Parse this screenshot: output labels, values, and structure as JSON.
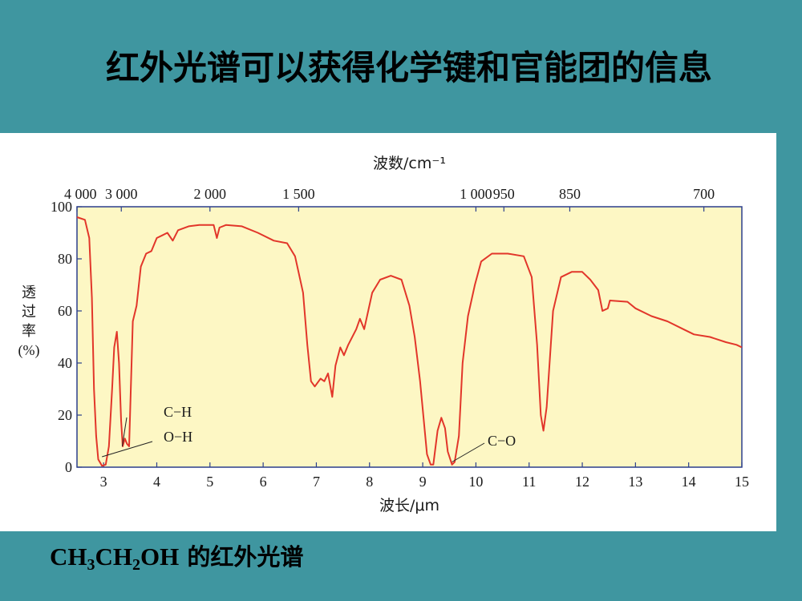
{
  "slide": {
    "title": "红外光谱可以获得化学键和官能团的信息",
    "caption": {
      "formula_parts": [
        "CH",
        "3",
        "CH",
        "2",
        "OH"
      ],
      "text": " 的红外光谱"
    }
  },
  "colors": {
    "background": "#3f96a0",
    "plot_fill": "#fdf7c4",
    "curve": "#e2362a",
    "axis": "#2b3f8c"
  },
  "chart_data": {
    "type": "line",
    "top_axis_label": "波数/cm⁻¹",
    "top_ticks": [
      "4 000",
      "3 000",
      "2 000",
      "1 500",
      "1 000",
      "950",
      "850",
      "700"
    ],
    "top_tick_values_um": [
      2.5,
      3.333,
      5.0,
      6.667,
      10.0,
      10.526,
      11.765,
      14.286
    ],
    "xlabel": "波长/μm",
    "ylabel": "透\n过\n率\n(%)",
    "ylabel_lines": [
      "透",
      "过",
      "率",
      "(%)"
    ],
    "xlim": [
      2.5,
      15
    ],
    "ylim": [
      0,
      100
    ],
    "x_ticks": [
      3,
      4,
      5,
      6,
      7,
      8,
      9,
      10,
      11,
      12,
      13,
      14,
      15
    ],
    "y_ticks": [
      0,
      20,
      40,
      60,
      80,
      100
    ],
    "series": [
      {
        "points": [
          [
            2.5,
            96
          ],
          [
            2.65,
            95
          ],
          [
            2.73,
            88
          ],
          [
            2.78,
            65
          ],
          [
            2.82,
            30
          ],
          [
            2.86,
            12
          ],
          [
            2.9,
            3
          ],
          [
            2.97,
            0.5
          ],
          [
            3.04,
            1
          ],
          [
            3.1,
            8
          ],
          [
            3.16,
            30
          ],
          [
            3.2,
            46
          ],
          [
            3.25,
            52
          ],
          [
            3.29,
            40
          ],
          [
            3.33,
            18
          ],
          [
            3.36,
            8
          ],
          [
            3.4,
            11
          ],
          [
            3.44,
            9
          ],
          [
            3.48,
            8
          ],
          [
            3.55,
            56
          ],
          [
            3.62,
            62
          ],
          [
            3.7,
            77
          ],
          [
            3.8,
            82
          ],
          [
            3.9,
            83
          ],
          [
            4.0,
            88
          ],
          [
            4.1,
            89
          ],
          [
            4.2,
            90
          ],
          [
            4.3,
            87
          ],
          [
            4.4,
            91
          ],
          [
            4.6,
            92.5
          ],
          [
            4.8,
            93
          ],
          [
            5.0,
            93
          ],
          [
            5.07,
            93
          ],
          [
            5.13,
            88
          ],
          [
            5.18,
            92
          ],
          [
            5.3,
            93
          ],
          [
            5.6,
            92.5
          ],
          [
            5.9,
            90
          ],
          [
            6.2,
            87
          ],
          [
            6.45,
            86
          ],
          [
            6.6,
            81
          ],
          [
            6.75,
            67
          ],
          [
            6.83,
            47
          ],
          [
            6.9,
            33
          ],
          [
            6.97,
            31
          ],
          [
            7.08,
            34
          ],
          [
            7.15,
            33
          ],
          [
            7.22,
            36
          ],
          [
            7.3,
            27
          ],
          [
            7.36,
            39
          ],
          [
            7.45,
            46
          ],
          [
            7.52,
            43
          ],
          [
            7.6,
            47
          ],
          [
            7.75,
            53
          ],
          [
            7.82,
            57
          ],
          [
            7.9,
            53
          ],
          [
            8.05,
            67
          ],
          [
            8.2,
            72
          ],
          [
            8.4,
            73.5
          ],
          [
            8.6,
            72
          ],
          [
            8.75,
            62
          ],
          [
            8.85,
            50
          ],
          [
            8.95,
            33
          ],
          [
            9.08,
            5
          ],
          [
            9.15,
            1
          ],
          [
            9.2,
            1
          ],
          [
            9.28,
            14
          ],
          [
            9.35,
            19
          ],
          [
            9.42,
            15
          ],
          [
            9.47,
            6
          ],
          [
            9.55,
            1
          ],
          [
            9.6,
            2
          ],
          [
            9.68,
            12
          ],
          [
            9.75,
            40
          ],
          [
            9.85,
            58
          ],
          [
            9.98,
            70
          ],
          [
            10.1,
            79
          ],
          [
            10.3,
            82
          ],
          [
            10.6,
            82
          ],
          [
            10.9,
            81
          ],
          [
            11.05,
            73
          ],
          [
            11.15,
            47
          ],
          [
            11.22,
            20
          ],
          [
            11.27,
            14
          ],
          [
            11.33,
            23
          ],
          [
            11.45,
            60
          ],
          [
            11.6,
            73
          ],
          [
            11.8,
            75
          ],
          [
            12.0,
            75
          ],
          [
            12.15,
            72
          ],
          [
            12.3,
            68
          ],
          [
            12.38,
            60
          ],
          [
            12.48,
            61
          ],
          [
            12.52,
            64
          ],
          [
            12.85,
            63.5
          ],
          [
            13.0,
            61
          ],
          [
            13.3,
            58
          ],
          [
            13.6,
            56
          ],
          [
            13.9,
            53
          ],
          [
            14.1,
            51
          ],
          [
            14.4,
            50
          ],
          [
            14.7,
            48
          ],
          [
            14.9,
            47
          ],
          [
            15.0,
            46
          ]
        ]
      }
    ],
    "annotations": [
      {
        "label": "C−H",
        "point": [
          3.35,
          8
        ]
      },
      {
        "label": "O−H",
        "point": [
          2.97,
          4
        ]
      },
      {
        "label": "C−O",
        "point": [
          9.55,
          2
        ]
      }
    ]
  }
}
